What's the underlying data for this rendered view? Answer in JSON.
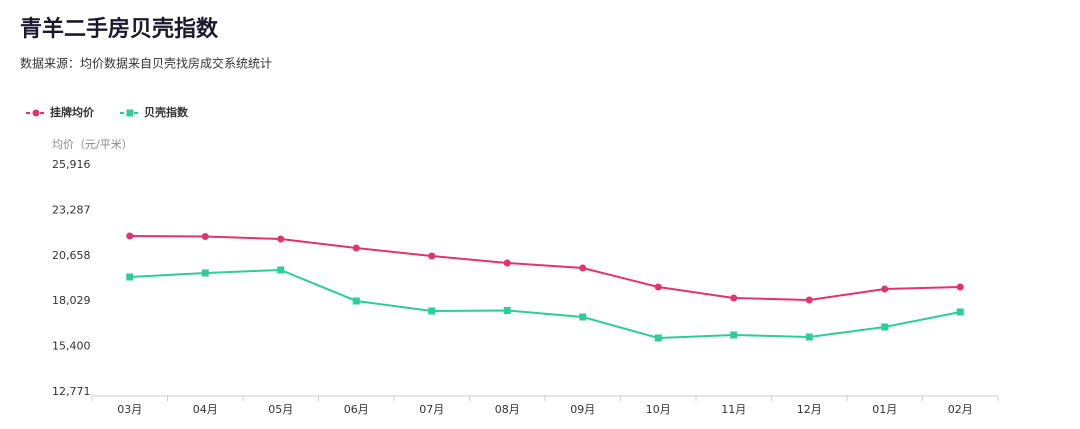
{
  "chart_data": {
    "type": "line",
    "title": "青羊二手房贝壳指数",
    "subtitle": "数据来源：均价数据来自贝壳找房成交系统统计",
    "y_label": "均价（元/平米）",
    "categories": [
      "03月",
      "04月",
      "05月",
      "06月",
      "07月",
      "08月",
      "09月",
      "10月",
      "11月",
      "12月",
      "01月",
      "02月"
    ],
    "series": [
      {
        "name": "挂牌均价",
        "color": "#e2336b",
        "marker": "circle",
        "values": [
          21805,
          21776,
          21631,
          21110,
          20647,
          20242,
          19952,
          18852,
          18215,
          18099,
          18736,
          18852
        ]
      },
      {
        "name": "贝壳指数",
        "color": "#2ecc9a",
        "marker": "square",
        "values": [
          19431,
          19663,
          19836,
          18042,
          17463,
          17492,
          17115,
          15899,
          16073,
          15957,
          16536,
          17405
        ]
      }
    ],
    "ylim": [
      12771,
      25916
    ],
    "yticks": [
      {
        "value": 12771,
        "label": "12,771"
      },
      {
        "value": 15400,
        "label": "15,400"
      },
      {
        "value": 18029,
        "label": "18,029"
      },
      {
        "value": 20658,
        "label": "20,658"
      },
      {
        "value": 23287,
        "label": "23,287"
      },
      {
        "value": 25916,
        "label": "25,916"
      }
    ],
    "grid": false,
    "legend": "top-left"
  }
}
